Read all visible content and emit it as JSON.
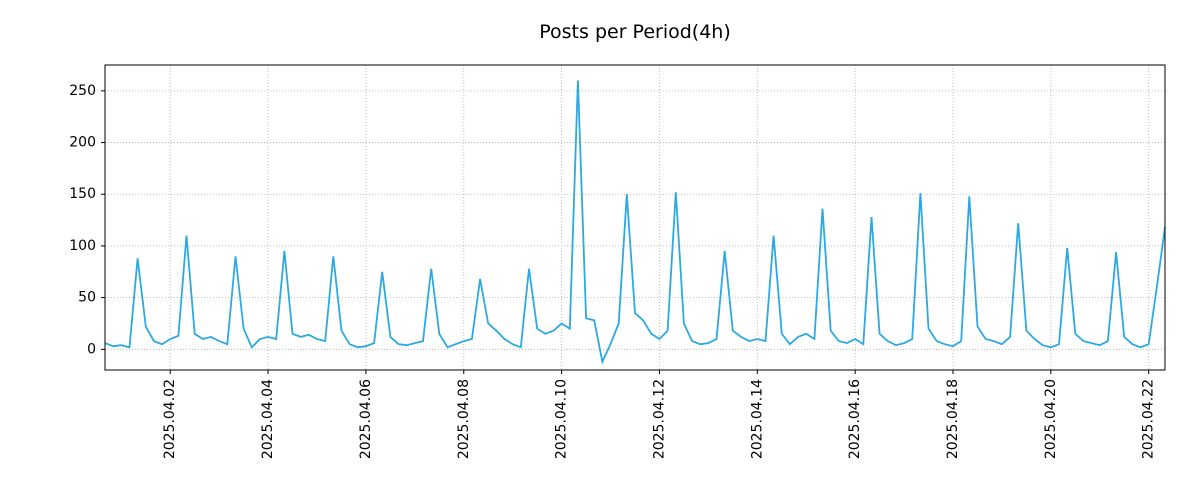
{
  "chart_data": {
    "type": "line",
    "title": "Posts per Period(4h)",
    "xlabel": "",
    "ylabel": "",
    "grid": true,
    "legend": "none",
    "series_color": "#2CA9E1",
    "grid_color": "#b0b0b0",
    "ylim": [
      -20,
      275
    ],
    "y_ticks": [
      0,
      50,
      100,
      150,
      200,
      250
    ],
    "x_tick_labels": [
      "2025.04.02",
      "2025.04.04",
      "2025.04.06",
      "2025.04.08",
      "2025.04.10",
      "2025.04.12",
      "2025.04.14",
      "2025.04.16",
      "2025.04.18",
      "2025.04.20",
      "2025.04.22"
    ],
    "x_tick_indices": [
      8,
      20,
      32,
      44,
      56,
      68,
      80,
      92,
      104,
      116,
      128
    ],
    "sample_interval_hours": 4,
    "values": [
      6,
      3,
      4,
      2,
      88,
      22,
      8,
      5,
      10,
      13,
      110,
      15,
      10,
      12,
      8,
      5,
      90,
      20,
      2,
      10,
      12,
      10,
      95,
      15,
      12,
      14,
      10,
      8,
      90,
      18,
      5,
      2,
      3,
      6,
      75,
      12,
      5,
      4,
      6,
      8,
      78,
      15,
      2,
      5,
      8,
      10,
      68,
      25,
      18,
      10,
      5,
      2,
      78,
      20,
      15,
      18,
      25,
      20,
      260,
      30,
      28,
      -12,
      5,
      25,
      150,
      35,
      28,
      15,
      10,
      18,
      152,
      25,
      8,
      5,
      6,
      10,
      95,
      18,
      12,
      8,
      10,
      8,
      110,
      15,
      5,
      12,
      15,
      10,
      136,
      18,
      8,
      6,
      10,
      5,
      128,
      15,
      8,
      4,
      6,
      10,
      151,
      20,
      8,
      5,
      3,
      8,
      148,
      22,
      10,
      8,
      5,
      12,
      122,
      18,
      10,
      4,
      2,
      5,
      98,
      15,
      8,
      6,
      4,
      8,
      94,
      12,
      5,
      2,
      5,
      60,
      118
    ]
  }
}
